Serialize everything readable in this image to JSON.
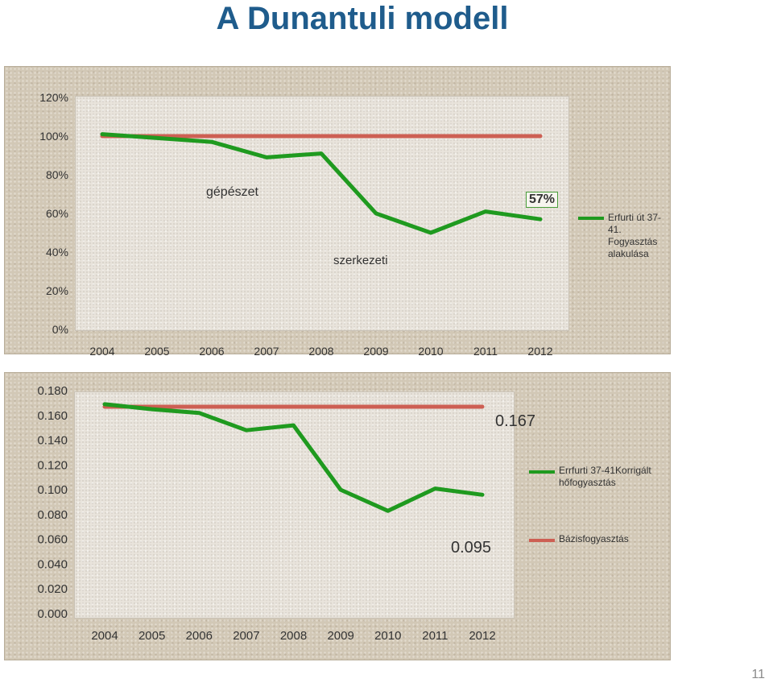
{
  "slide": {
    "title": "A Dunantuli modell",
    "page_number": "11"
  },
  "colors": {
    "green": "#1f9a1f",
    "red": "#cd5f53",
    "title": "#1f5c8c"
  },
  "chart_data": [
    {
      "type": "line",
      "categories": [
        "2004",
        "2005",
        "2006",
        "2007",
        "2008",
        "2009",
        "2010",
        "2011",
        "2012"
      ],
      "ylim": [
        0,
        1.2
      ],
      "y_ticks": [
        "0%",
        "20%",
        "40%",
        "60%",
        "80%",
        "100%",
        "120%"
      ],
      "series": [
        {
          "name": "Erfurti út 37-41. Fogyasztás alakulása",
          "values": [
            1.01,
            0.99,
            0.97,
            0.89,
            0.91,
            0.6,
            0.5,
            0.61,
            0.57
          ],
          "color": "#1f9a1f"
        },
        {
          "values": [
            1.0,
            1.0,
            1.0,
            1.0,
            1.0,
            1.0,
            1.0,
            1.0,
            1.0
          ],
          "color": "#cd5f53"
        }
      ],
      "annotations": [
        "gépészet",
        "szerkezeti",
        "57%"
      ],
      "legend_position": "right",
      "grid": false
    },
    {
      "type": "line",
      "categories": [
        "2004",
        "2005",
        "2006",
        "2007",
        "2008",
        "2009",
        "2010",
        "2011",
        "2012"
      ],
      "ylim": [
        0,
        0.18
      ],
      "y_ticks": [
        "0.000",
        "0.020",
        "0.040",
        "0.060",
        "0.080",
        "0.100",
        "0.120",
        "0.140",
        "0.160",
        "0.180"
      ],
      "series": [
        {
          "name": "Errfurti 37-41Korrigált hőfogyasztás",
          "values": [
            0.169,
            0.165,
            0.162,
            0.148,
            0.152,
            0.1,
            0.083,
            0.101,
            0.096
          ],
          "color": "#1f9a1f"
        },
        {
          "name": "Bázisfogyasztás",
          "values": [
            0.167,
            0.167,
            0.167,
            0.167,
            0.167,
            0.167,
            0.167,
            0.167,
            0.167
          ],
          "color": "#cd5f53"
        }
      ],
      "annotations": [
        "0.167",
        "0.095"
      ],
      "legend_position": "right",
      "grid": false
    }
  ]
}
